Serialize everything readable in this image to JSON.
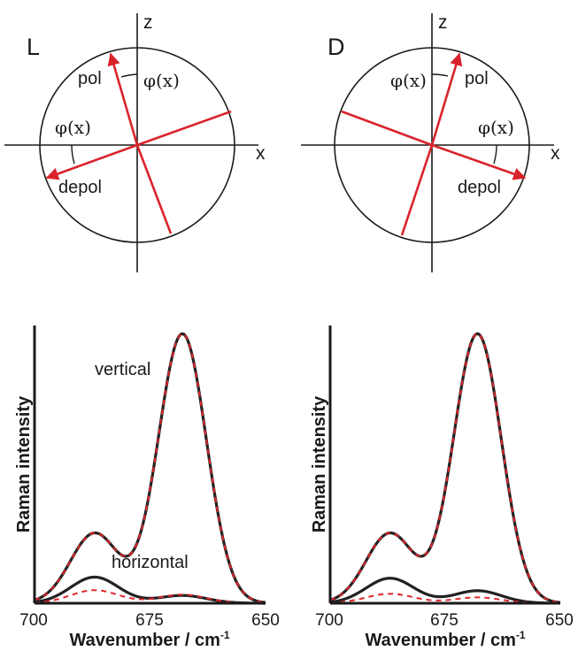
{
  "diagrams": [
    {
      "panel": "L",
      "axis_z": "z",
      "axis_x": "x",
      "angle_label_top": "φ(x)",
      "angle_label_left": "φ(x)",
      "pol_label": "pol",
      "depol_label": "depol"
    },
    {
      "panel": "D",
      "axis_z": "z",
      "axis_x": "x",
      "angle_label_top": "φ(x)",
      "angle_label_right": "φ(x)",
      "pol_label": "pol",
      "depol_label": "depol"
    }
  ],
  "colors": {
    "axis": "#1a1a1a",
    "polarization_line": "#d9232b",
    "spectrum_black": "#222222",
    "spectrum_red_dashed": "#e0262c"
  },
  "chart_data": [
    {
      "type": "line",
      "xlabel": "Wavenumber / cm",
      "xlabel_sup": "-1",
      "ylabel": "Raman intensity",
      "xlim": [
        700,
        650
      ],
      "ticks": [
        "700",
        "675",
        "650"
      ],
      "annotations": [
        "vertical",
        "horizontal"
      ],
      "components": [
        {
          "center": 687,
          "width": 5.2
        },
        {
          "center": 668,
          "width": 5.2
        }
      ],
      "series": [
        {
          "label": "vertical",
          "style": "solid-black",
          "amplitudes": [
            0.252,
            0.97
          ]
        },
        {
          "label": "vertical",
          "style": "dashed-red",
          "amplitudes": [
            0.252,
            0.97
          ]
        },
        {
          "label": "horizontal",
          "style": "solid-black",
          "amplitudes": [
            0.094,
            0.028
          ]
        },
        {
          "label": "horizontal",
          "style": "dashed-red",
          "amplitudes": [
            0.047,
            0.031
          ]
        }
      ]
    },
    {
      "type": "line",
      "xlabel": "Wavenumber / cm",
      "xlabel_sup": "-1",
      "ylabel": "Raman intensity",
      "xlim": [
        700,
        650
      ],
      "ticks": [
        "700",
        "675",
        "650"
      ],
      "components": [
        {
          "center": 687,
          "width": 5.2
        },
        {
          "center": 668,
          "width": 5.2
        }
      ],
      "series": [
        {
          "label": "vertical",
          "style": "solid-black",
          "amplitudes": [
            0.252,
            0.97
          ]
        },
        {
          "label": "vertical",
          "style": "dashed-red",
          "amplitudes": [
            0.252,
            0.97
          ]
        },
        {
          "label": "horizontal",
          "style": "solid-black",
          "amplitudes": [
            0.09,
            0.045
          ]
        },
        {
          "label": "horizontal",
          "style": "dashed-red",
          "amplitudes": [
            0.034,
            0.021
          ]
        }
      ]
    }
  ]
}
